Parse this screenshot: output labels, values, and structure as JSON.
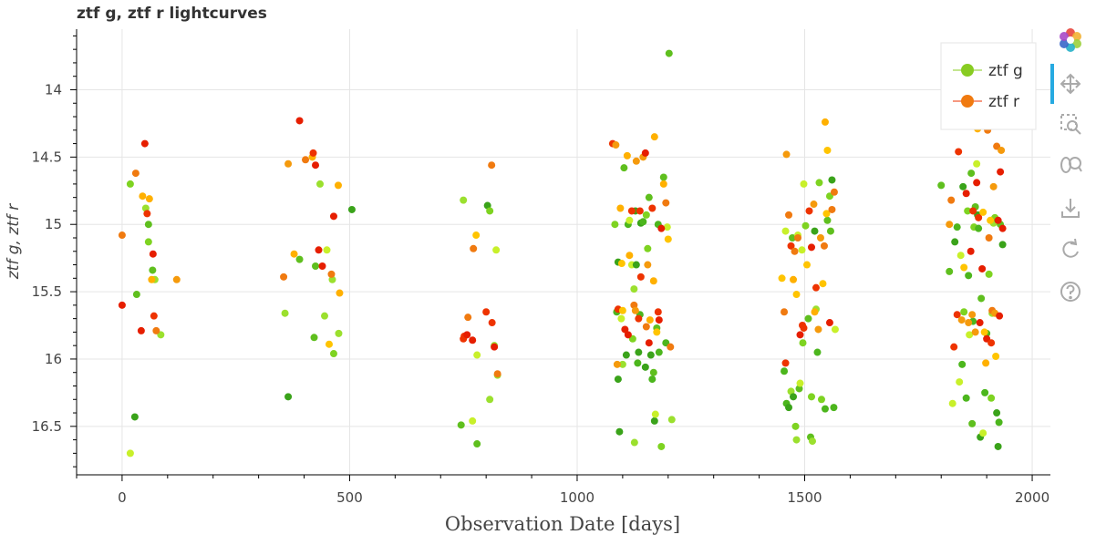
{
  "chart_data": {
    "type": "scatter",
    "title": "ztf g, ztf r lightcurves",
    "xlabel": "Observation Date [days]",
    "ylabel": "ztf g, ztf r",
    "xlim": [
      -100,
      2040
    ],
    "ylim": [
      16.86,
      13.55
    ],
    "y_inverted": true,
    "x_ticks": [
      0,
      500,
      1000,
      1500,
      2000
    ],
    "y_ticks": [
      14,
      14.5,
      15,
      15.5,
      16,
      16.5
    ],
    "grid": true,
    "legend_position": "top-right",
    "series": [
      {
        "name": "ztf g",
        "color": "#88cc22",
        "points": [
          [
            18,
            16.7
          ],
          [
            28,
            16.43
          ],
          [
            32,
            15.52
          ],
          [
            18,
            14.7
          ],
          [
            52,
            14.88
          ],
          [
            58,
            15.0
          ],
          [
            58,
            15.13
          ],
          [
            67,
            15.34
          ],
          [
            72,
            15.41
          ],
          [
            85,
            15.82
          ],
          [
            358,
            15.66
          ],
          [
            365,
            16.28
          ],
          [
            390,
            15.26
          ],
          [
            422,
            15.84
          ],
          [
            425,
            15.31
          ],
          [
            435,
            14.7
          ],
          [
            445,
            15.68
          ],
          [
            450,
            15.19
          ],
          [
            462,
            15.41
          ],
          [
            465,
            15.96
          ],
          [
            476,
            15.81
          ],
          [
            505,
            14.89
          ],
          [
            750,
            14.82
          ],
          [
            745,
            16.49
          ],
          [
            770,
            16.46
          ],
          [
            780,
            16.63
          ],
          [
            780,
            15.97
          ],
          [
            803,
            14.86
          ],
          [
            808,
            14.9
          ],
          [
            808,
            16.3
          ],
          [
            818,
            15.9
          ],
          [
            822,
            15.19
          ],
          [
            825,
            16.12
          ],
          [
            1083,
            15.0
          ],
          [
            1087,
            15.65
          ],
          [
            1090,
            15.28
          ],
          [
            1090,
            16.15
          ],
          [
            1093,
            16.54
          ],
          [
            1097,
            15.7
          ],
          [
            1100,
            16.04
          ],
          [
            1103,
            14.58
          ],
          [
            1108,
            15.97
          ],
          [
            1112,
            15.0
          ],
          [
            1115,
            14.97
          ],
          [
            1120,
            15.3
          ],
          [
            1122,
            15.85
          ],
          [
            1125,
            15.48
          ],
          [
            1126,
            16.62
          ],
          [
            1128,
            14.9
          ],
          [
            1130,
            15.3
          ],
          [
            1133,
            16.03
          ],
          [
            1135,
            15.95
          ],
          [
            1138,
            15.67
          ],
          [
            1140,
            14.99
          ],
          [
            1145,
            14.98
          ],
          [
            1150,
            16.06
          ],
          [
            1152,
            14.93
          ],
          [
            1155,
            15.18
          ],
          [
            1158,
            14.8
          ],
          [
            1162,
            15.97
          ],
          [
            1165,
            16.15
          ],
          [
            1168,
            16.1
          ],
          [
            1170,
            16.46
          ],
          [
            1172,
            16.41
          ],
          [
            1175,
            15.77
          ],
          [
            1178,
            15.0
          ],
          [
            1180,
            15.95
          ],
          [
            1185,
            16.65
          ],
          [
            1190,
            14.65
          ],
          [
            1195,
            15.88
          ],
          [
            1198,
            15.02
          ],
          [
            1202,
            13.73
          ],
          [
            1208,
            16.45
          ],
          [
            1455,
            16.09
          ],
          [
            1458,
            15.05
          ],
          [
            1460,
            16.33
          ],
          [
            1465,
            16.36
          ],
          [
            1470,
            16.24
          ],
          [
            1473,
            15.1
          ],
          [
            1475,
            16.28
          ],
          [
            1480,
            16.5
          ],
          [
            1482,
            16.6
          ],
          [
            1485,
            15.08
          ],
          [
            1488,
            16.22
          ],
          [
            1490,
            16.18
          ],
          [
            1494,
            15.19
          ],
          [
            1496,
            15.88
          ],
          [
            1498,
            14.7
          ],
          [
            1502,
            15.01
          ],
          [
            1508,
            15.7
          ],
          [
            1513,
            16.58
          ],
          [
            1515,
            16.28
          ],
          [
            1517,
            16.61
          ],
          [
            1522,
            15.05
          ],
          [
            1525,
            15.63
          ],
          [
            1528,
            15.95
          ],
          [
            1532,
            14.69
          ],
          [
            1537,
            16.3
          ],
          [
            1545,
            16.37
          ],
          [
            1550,
            14.97
          ],
          [
            1555,
            14.79
          ],
          [
            1557,
            15.05
          ],
          [
            1560,
            14.67
          ],
          [
            1564,
            16.36
          ],
          [
            1567,
            15.78
          ],
          [
            1800,
            14.71
          ],
          [
            1818,
            15.35
          ],
          [
            1825,
            16.33
          ],
          [
            1830,
            15.13
          ],
          [
            1835,
            15.02
          ],
          [
            1840,
            16.17
          ],
          [
            1843,
            15.23
          ],
          [
            1846,
            16.04
          ],
          [
            1848,
            14.72
          ],
          [
            1850,
            15.65
          ],
          [
            1855,
            16.29
          ],
          [
            1858,
            14.9
          ],
          [
            1860,
            15.38
          ],
          [
            1862,
            15.82
          ],
          [
            1866,
            14.62
          ],
          [
            1868,
            16.48
          ],
          [
            1870,
            15.72
          ],
          [
            1872,
            15.02
          ],
          [
            1875,
            14.87
          ],
          [
            1878,
            14.55
          ],
          [
            1880,
            14.93
          ],
          [
            1882,
            15.03
          ],
          [
            1886,
            16.58
          ],
          [
            1888,
            15.55
          ],
          [
            1892,
            16.55
          ],
          [
            1896,
            16.25
          ],
          [
            1900,
            15.81
          ],
          [
            1905,
            15.37
          ],
          [
            1910,
            16.29
          ],
          [
            1912,
            15.66
          ],
          [
            1915,
            14.99
          ],
          [
            1918,
            14.95
          ],
          [
            1922,
            16.4
          ],
          [
            1925,
            16.65
          ],
          [
            1927,
            16.47
          ],
          [
            1930,
            15.0
          ],
          [
            1935,
            15.15
          ]
        ]
      },
      {
        "name": "ztf r",
        "color": "#ee6a11",
        "points": [
          [
            0,
            15.6
          ],
          [
            0,
            15.08
          ],
          [
            30,
            14.62
          ],
          [
            42,
            15.79
          ],
          [
            45,
            14.79
          ],
          [
            50,
            14.4
          ],
          [
            55,
            14.92
          ],
          [
            60,
            14.81
          ],
          [
            65,
            15.41
          ],
          [
            68,
            15.22
          ],
          [
            70,
            15.68
          ],
          [
            75,
            15.79
          ],
          [
            120,
            15.41
          ],
          [
            355,
            15.39
          ],
          [
            365,
            14.55
          ],
          [
            378,
            15.22
          ],
          [
            390,
            14.23
          ],
          [
            403,
            14.52
          ],
          [
            418,
            14.5
          ],
          [
            420,
            14.47
          ],
          [
            425,
            14.56
          ],
          [
            432,
            15.19
          ],
          [
            440,
            15.31
          ],
          [
            455,
            15.89
          ],
          [
            460,
            15.37
          ],
          [
            465,
            14.94
          ],
          [
            475,
            14.71
          ],
          [
            478,
            15.51
          ],
          [
            760,
            15.69
          ],
          [
            750,
            15.85
          ],
          [
            752,
            15.83
          ],
          [
            758,
            15.82
          ],
          [
            770,
            15.86
          ],
          [
            772,
            15.18
          ],
          [
            778,
            15.08
          ],
          [
            800,
            15.65
          ],
          [
            812,
            14.56
          ],
          [
            813,
            15.73
          ],
          [
            818,
            15.91
          ],
          [
            825,
            16.11
          ],
          [
            1078,
            14.4
          ],
          [
            1085,
            14.41
          ],
          [
            1088,
            16.04
          ],
          [
            1090,
            15.63
          ],
          [
            1095,
            14.88
          ],
          [
            1098,
            15.29
          ],
          [
            1100,
            15.64
          ],
          [
            1105,
            15.78
          ],
          [
            1110,
            14.49
          ],
          [
            1112,
            15.82
          ],
          [
            1115,
            15.23
          ],
          [
            1120,
            14.9
          ],
          [
            1125,
            15.6
          ],
          [
            1128,
            15.64
          ],
          [
            1130,
            14.53
          ],
          [
            1135,
            15.7
          ],
          [
            1138,
            14.9
          ],
          [
            1140,
            15.39
          ],
          [
            1145,
            14.5
          ],
          [
            1150,
            14.47
          ],
          [
            1152,
            15.76
          ],
          [
            1155,
            15.3
          ],
          [
            1158,
            15.88
          ],
          [
            1160,
            15.71
          ],
          [
            1165,
            14.88
          ],
          [
            1168,
            15.42
          ],
          [
            1170,
            14.35
          ],
          [
            1175,
            15.8
          ],
          [
            1178,
            15.65
          ],
          [
            1180,
            15.71
          ],
          [
            1185,
            15.03
          ],
          [
            1190,
            14.7
          ],
          [
            1195,
            14.84
          ],
          [
            1200,
            15.11
          ],
          [
            1205,
            15.91
          ],
          [
            1450,
            15.4
          ],
          [
            1455,
            15.65
          ],
          [
            1458,
            16.03
          ],
          [
            1460,
            14.48
          ],
          [
            1465,
            14.93
          ],
          [
            1470,
            15.16
          ],
          [
            1475,
            15.41
          ],
          [
            1478,
            15.2
          ],
          [
            1482,
            15.52
          ],
          [
            1485,
            15.1
          ],
          [
            1490,
            15.82
          ],
          [
            1495,
            15.75
          ],
          [
            1498,
            15.77
          ],
          [
            1505,
            15.3
          ],
          [
            1510,
            14.9
          ],
          [
            1515,
            15.17
          ],
          [
            1520,
            14.85
          ],
          [
            1522,
            15.65
          ],
          [
            1525,
            15.47
          ],
          [
            1530,
            15.78
          ],
          [
            1535,
            15.1
          ],
          [
            1540,
            15.44
          ],
          [
            1543,
            15.16
          ],
          [
            1545,
            14.24
          ],
          [
            1548,
            14.92
          ],
          [
            1550,
            14.45
          ],
          [
            1555,
            15.73
          ],
          [
            1560,
            14.89
          ],
          [
            1565,
            14.76
          ],
          [
            1818,
            15.0
          ],
          [
            1822,
            14.82
          ],
          [
            1828,
            15.91
          ],
          [
            1835,
            15.67
          ],
          [
            1838,
            14.46
          ],
          [
            1845,
            15.71
          ],
          [
            1850,
            15.32
          ],
          [
            1855,
            14.77
          ],
          [
            1860,
            15.73
          ],
          [
            1865,
            15.2
          ],
          [
            1868,
            15.67
          ],
          [
            1870,
            14.9
          ],
          [
            1875,
            15.8
          ],
          [
            1878,
            14.69
          ],
          [
            1880,
            14.29
          ],
          [
            1882,
            14.95
          ],
          [
            1885,
            15.73
          ],
          [
            1890,
            15.33
          ],
          [
            1892,
            14.91
          ],
          [
            1895,
            15.8
          ],
          [
            1898,
            16.03
          ],
          [
            1900,
            15.85
          ],
          [
            1902,
            14.3
          ],
          [
            1905,
            15.1
          ],
          [
            1908,
            14.97
          ],
          [
            1910,
            15.88
          ],
          [
            1912,
            15.64
          ],
          [
            1915,
            14.72
          ],
          [
            1918,
            15.66
          ],
          [
            1920,
            15.98
          ],
          [
            1922,
            14.42
          ],
          [
            1925,
            14.97
          ],
          [
            1928,
            15.68
          ],
          [
            1930,
            14.61
          ],
          [
            1932,
            14.45
          ],
          [
            1935,
            15.03
          ]
        ]
      }
    ]
  }
}
